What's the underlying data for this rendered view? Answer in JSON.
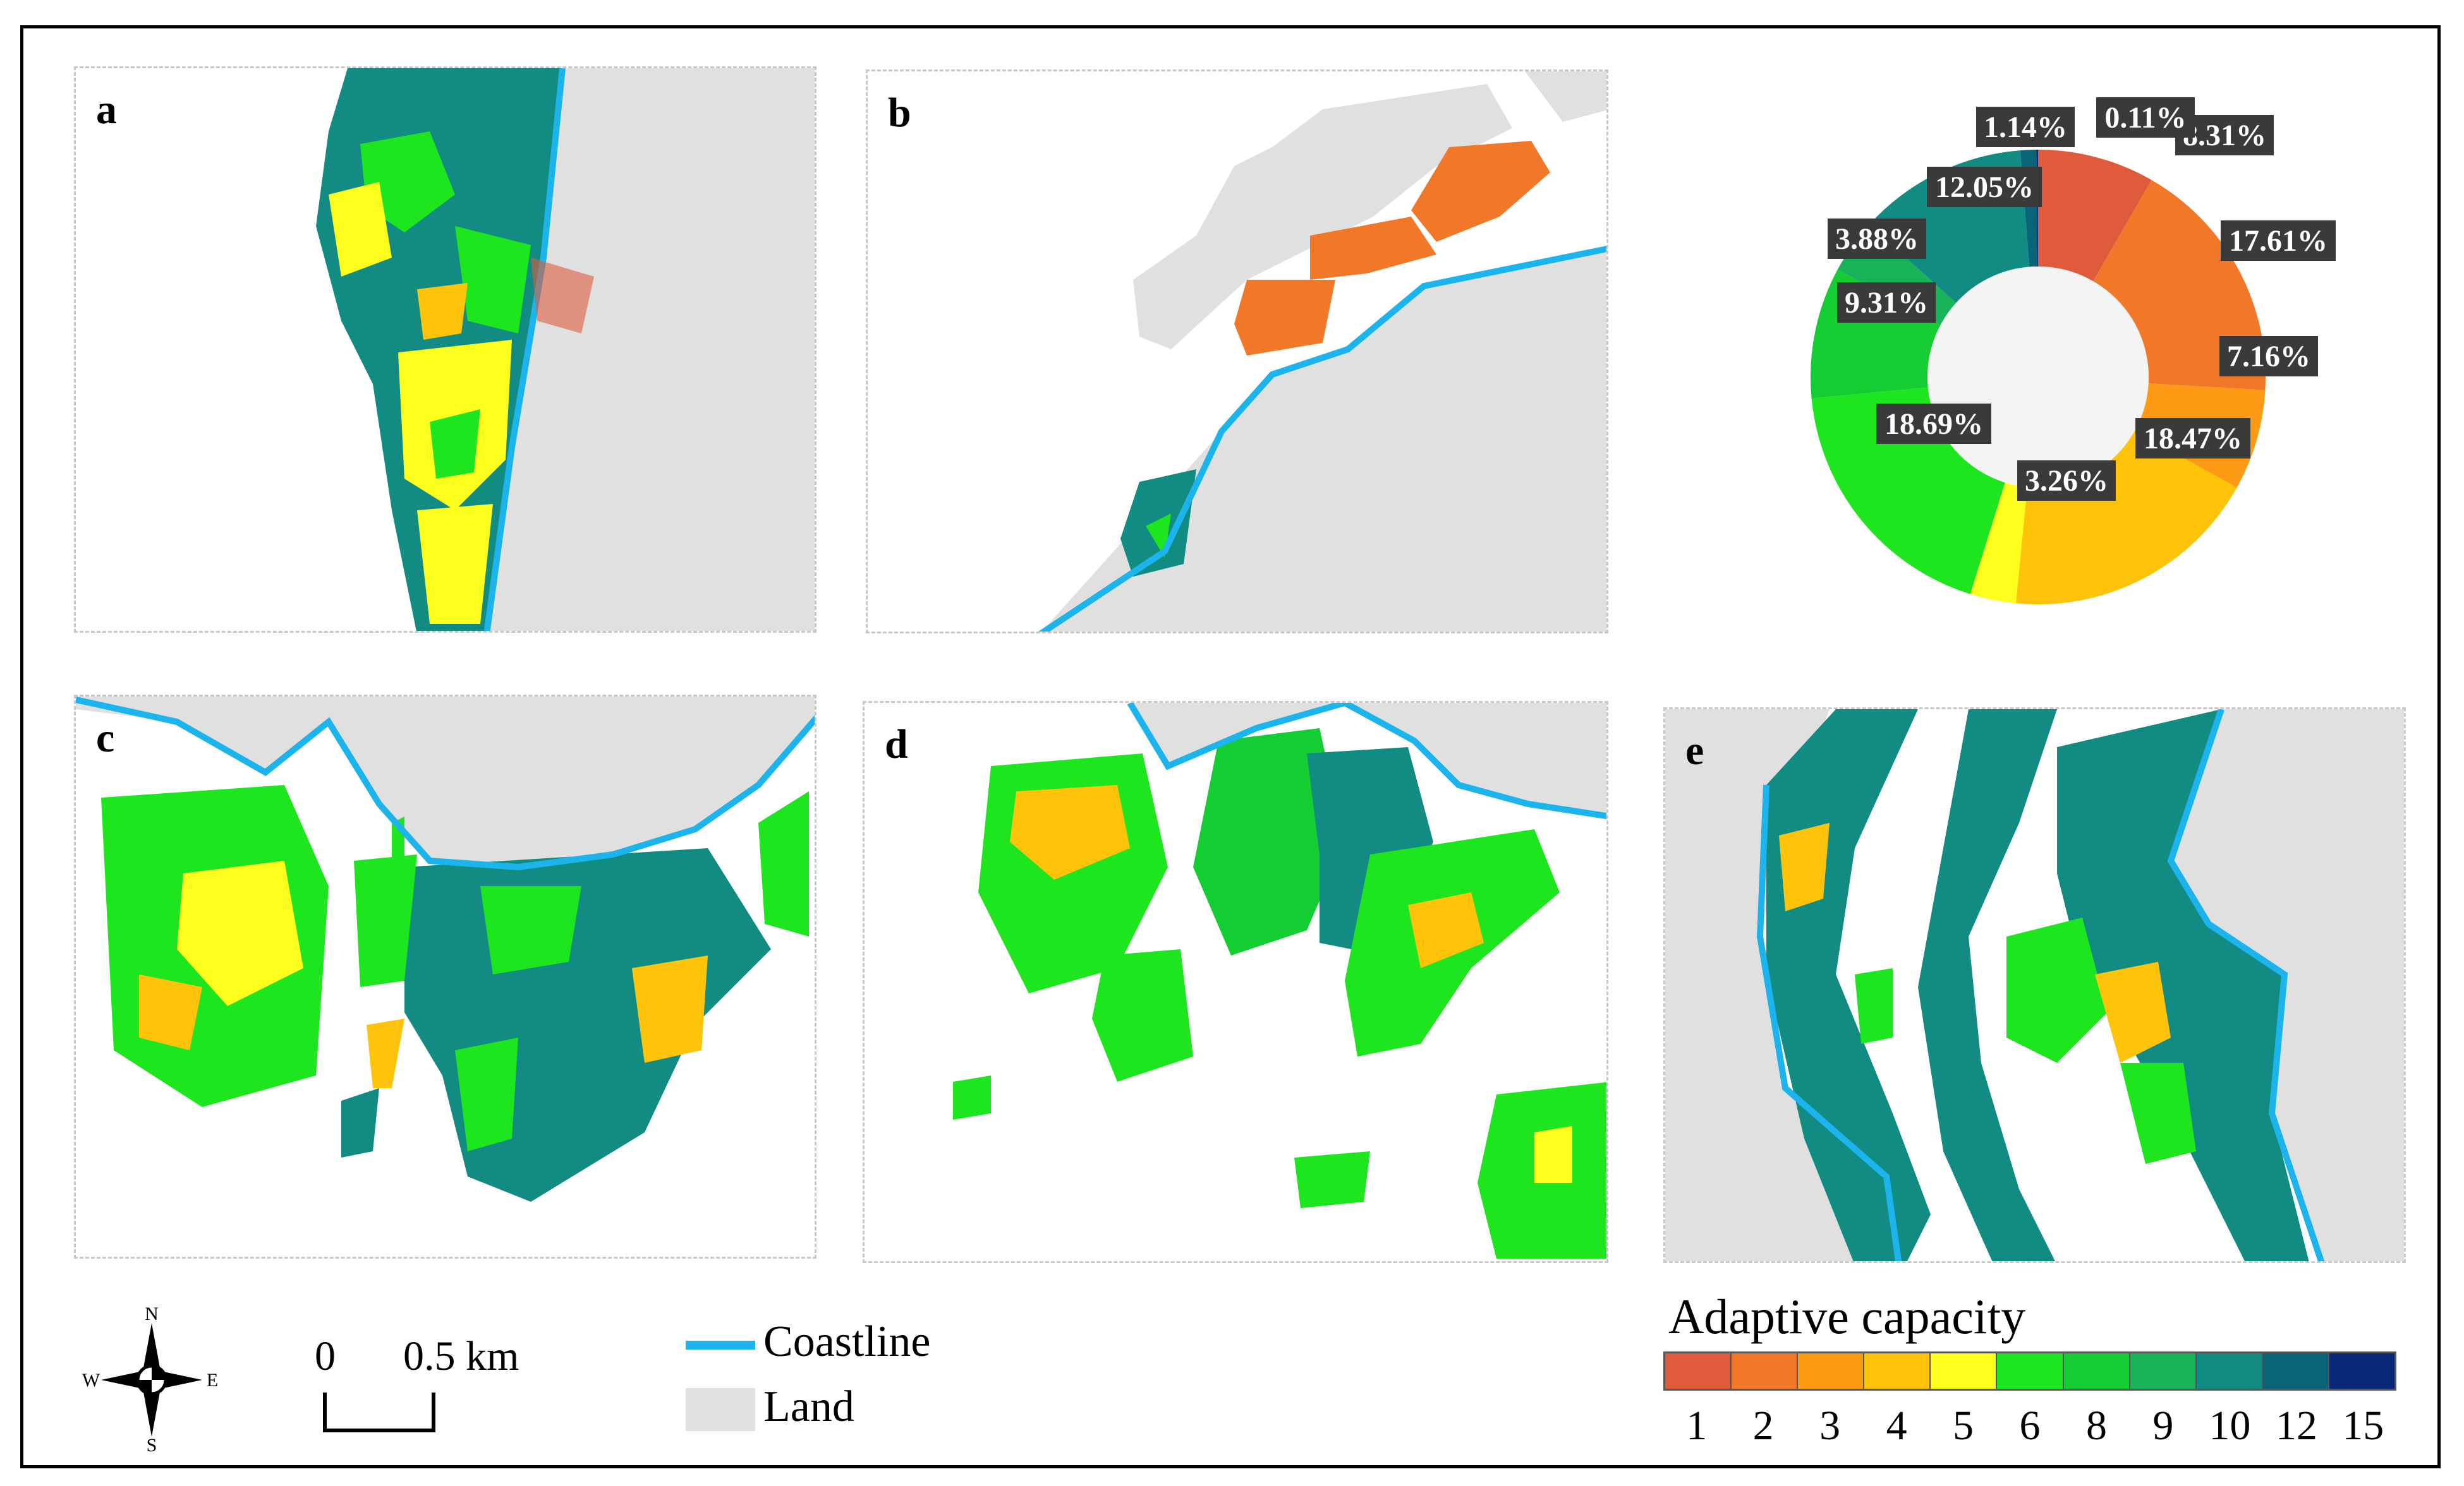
{
  "panels": [
    {
      "id": "a",
      "label": "a"
    },
    {
      "id": "b",
      "label": "b"
    },
    {
      "id": "c",
      "label": "c"
    },
    {
      "id": "d",
      "label": "d"
    },
    {
      "id": "e",
      "label": "e"
    }
  ],
  "donut": {
    "slices": [
      {
        "class": "1",
        "label": "8.31%",
        "value": 8.31,
        "color": "#e05a3c"
      },
      {
        "class": "2",
        "label": "17.61%",
        "value": 17.61,
        "color": "#f07828"
      },
      {
        "class": "3",
        "label": "7.16%",
        "value": 7.16,
        "color": "#ff9a14"
      },
      {
        "class": "4",
        "label": "18.47%",
        "value": 18.47,
        "color": "#ffc40a"
      },
      {
        "class": "5",
        "label": "3.26%",
        "value": 3.26,
        "color": "#ffff1e"
      },
      {
        "class": "6",
        "label": "18.69%",
        "value": 18.69,
        "color": "#1ee61e"
      },
      {
        "class": "8",
        "label": "9.31%",
        "value": 9.31,
        "color": "#14cd32"
      },
      {
        "class": "9",
        "label": "3.88%",
        "value": 3.88,
        "color": "#19b45a"
      },
      {
        "class": "10",
        "label": "12.05%",
        "value": 12.05,
        "color": "#128c82"
      },
      {
        "class": "12",
        "label": "1.14%",
        "value": 1.14,
        "color": "#0a6478"
      },
      {
        "class": "15",
        "label": "0.11%",
        "value": 0.11,
        "color": "#0a2878"
      }
    ]
  },
  "legend": {
    "coastline_label": "Coastline",
    "land_label": "Land",
    "coastline_color": "#1cb4ec",
    "land_color": "#e0e0e0",
    "compass": {
      "n": "N",
      "s": "S",
      "e": "E",
      "w": "W"
    },
    "scale": {
      "start": "0",
      "end": "0.5 km"
    }
  },
  "adaptive_capacity": {
    "title": "Adaptive capacity",
    "ticks": [
      "1",
      "2",
      "3",
      "4",
      "5",
      "6",
      "8",
      "9",
      "10",
      "12",
      "15"
    ],
    "colors": [
      "#e05a3c",
      "#f07828",
      "#ff9a14",
      "#ffc40a",
      "#ffff1e",
      "#1ee61e",
      "#14cd32",
      "#19b45a",
      "#128c82",
      "#0a6478",
      "#0a2878"
    ]
  }
}
